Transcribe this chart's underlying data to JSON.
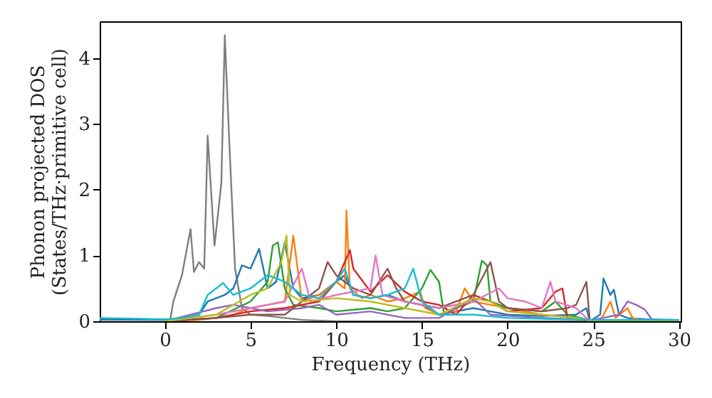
{
  "chart_data": {
    "type": "line",
    "xlabel": "Frequency (THz)",
    "ylabel": "Phonon projected DOS\n(States/THz·primitive cell)",
    "xlim": [
      -3.8,
      30.1
    ],
    "ylim": [
      0,
      4.56
    ],
    "xticks": [
      0,
      5,
      10,
      15,
      20,
      25,
      30
    ],
    "yticks": [
      0,
      1,
      2,
      3,
      4
    ],
    "grid": false,
    "marker": "none",
    "line_style": "solid",
    "series": [
      {
        "color": "#7f7f7f",
        "x": [
          -3.8,
          0,
          0.3,
          0.5,
          1,
          1.5,
          1.7,
          2,
          2.3,
          2.5,
          2.9,
          3.3,
          3.5,
          3.8,
          4.1,
          4.5,
          5,
          6,
          8,
          10,
          30
        ],
        "values": [
          0.02,
          0.02,
          0,
          0.3,
          0.7,
          1.4,
          0.75,
          0.9,
          0.8,
          2.82,
          1.15,
          2.1,
          4.35,
          2.5,
          0.8,
          0.2,
          0.1,
          0.08,
          0.02,
          0,
          0
        ]
      },
      {
        "color": "#1f77b4",
        "x": [
          -3.8,
          0,
          1,
          2,
          2.5,
          3,
          3.5,
          4,
          4.5,
          5,
          5.5,
          6,
          6.5,
          7,
          7.5,
          8,
          9,
          10,
          10.5,
          11,
          12,
          13,
          14,
          15,
          16,
          17,
          18,
          19,
          20,
          22,
          24,
          24.6,
          24.8,
          25.4,
          25.6,
          26,
          26.2,
          26.5,
          27,
          28,
          30
        ],
        "values": [
          0.03,
          0.02,
          0.05,
          0.1,
          0.3,
          0.35,
          0.4,
          0.5,
          0.85,
          0.8,
          1.1,
          0.5,
          0.6,
          1.2,
          0.5,
          0.35,
          0.4,
          0.6,
          0.7,
          0.4,
          0.35,
          0.4,
          0.3,
          0.25,
          0.1,
          0.15,
          0.2,
          0.15,
          0.1,
          0.08,
          0.1,
          0.2,
          0,
          0.1,
          0.65,
          0.4,
          0.48,
          0.1,
          0.05,
          0.03,
          0.02
        ]
      },
      {
        "color": "#ff7f0e",
        "x": [
          0,
          2,
          3,
          4,
          5,
          6,
          7,
          7.5,
          8,
          9,
          10,
          10.5,
          10.6,
          10.8,
          11.5,
          12,
          13,
          14,
          14.9,
          15.2,
          16,
          17,
          17.5,
          18,
          19,
          20,
          22,
          24,
          25,
          25.5,
          26,
          26.3,
          27,
          27.3,
          28,
          30
        ],
        "values": [
          0,
          0.02,
          0.05,
          0.1,
          0.2,
          0.25,
          0.3,
          1.3,
          0.3,
          0.4,
          0.6,
          0.5,
          1.68,
          0.5,
          0.35,
          0.4,
          0.3,
          0.35,
          0.45,
          0.2,
          0.1,
          0.15,
          0.5,
          0.3,
          0.25,
          0.2,
          0.1,
          0.05,
          0,
          0.05,
          0.3,
          0.05,
          0.2,
          0.05,
          0,
          0
        ]
      },
      {
        "color": "#2ca02c",
        "x": [
          0,
          3,
          5,
          6,
          6.3,
          6.6,
          7,
          7.5,
          9,
          10,
          12,
          13,
          14,
          15,
          15.5,
          16,
          16.3,
          17,
          18,
          18.5,
          18.8,
          19,
          20,
          22,
          22.8,
          23.5,
          25,
          30
        ],
        "values": [
          0,
          0.05,
          0.3,
          0.6,
          1.15,
          1.2,
          0.5,
          0.25,
          0.2,
          0.15,
          0.2,
          0.15,
          0.2,
          0.5,
          0.78,
          0.6,
          0.1,
          0.2,
          0.3,
          0.92,
          0.85,
          0.3,
          0.2,
          0.15,
          0.3,
          0.1,
          0,
          0
        ]
      },
      {
        "color": "#d62728",
        "x": [
          0,
          3,
          5,
          7,
          9,
          10,
          10.8,
          11,
          12,
          13,
          14,
          15,
          16,
          17,
          18,
          19,
          20,
          22,
          22.8,
          23.2,
          23.5,
          25,
          30
        ],
        "values": [
          0,
          0.05,
          0.15,
          0.2,
          0.3,
          0.6,
          1.08,
          0.8,
          0.45,
          0.7,
          0.45,
          0.3,
          0.25,
          0.1,
          0.4,
          0.3,
          0.15,
          0.2,
          0.45,
          0.5,
          0.05,
          0,
          0
        ]
      },
      {
        "color": "#9467bd",
        "x": [
          0,
          3,
          4,
          5,
          6,
          8,
          9,
          10,
          12,
          14,
          16,
          18,
          19,
          22,
          25,
          26.5,
          27,
          27.5,
          28,
          28.5,
          30
        ],
        "values": [
          0,
          0.2,
          0.25,
          0.2,
          0.15,
          0.2,
          0.25,
          0.1,
          0.15,
          0.05,
          0.05,
          0.35,
          0.1,
          0.05,
          0.02,
          0.1,
          0.3,
          0.25,
          0.18,
          0,
          0
        ]
      },
      {
        "color": "#8c564b",
        "x": [
          0,
          3,
          5,
          7,
          9,
          9.5,
          10,
          11,
          12,
          13,
          13.5,
          14,
          16,
          18,
          19,
          19.5,
          20,
          22,
          23.5,
          24,
          24.6,
          24.8,
          30
        ],
        "values": [
          0,
          0.05,
          0.1,
          0.1,
          0.5,
          0.9,
          0.7,
          0.5,
          0.4,
          0.8,
          0.5,
          0.3,
          0.2,
          0.4,
          0.9,
          0.3,
          0.2,
          0.15,
          0.2,
          0.25,
          0.6,
          0,
          0
        ]
      },
      {
        "color": "#e377c2",
        "x": [
          0,
          3,
          5,
          7,
          8,
          8.5,
          10,
          12,
          12.3,
          12.7,
          14,
          16,
          18,
          19.5,
          20,
          21,
          22,
          22.5,
          22.8,
          24,
          24.8,
          30
        ],
        "values": [
          0,
          0.1,
          0.2,
          0.3,
          0.8,
          0.3,
          0.4,
          0.5,
          1.0,
          0.4,
          0.3,
          0.2,
          0.3,
          0.5,
          0.35,
          0.3,
          0.2,
          0.6,
          0.3,
          0.2,
          0,
          0
        ]
      },
      {
        "color": "#bcbd22",
        "x": [
          0,
          3,
          5,
          6,
          6.8,
          7.1,
          7.3,
          8,
          10,
          12,
          14,
          16,
          18,
          19,
          20,
          22,
          24,
          25,
          30
        ],
        "values": [
          0,
          0.1,
          0.4,
          0.5,
          0.9,
          1.3,
          0.4,
          0.3,
          0.35,
          0.3,
          0.2,
          0.1,
          0.35,
          0.3,
          0.15,
          0.1,
          0.05,
          0,
          0
        ]
      },
      {
        "color": "#17becf",
        "x": [
          -3.8,
          0,
          1,
          2,
          2.5,
          3.4,
          4,
          5,
          6,
          7,
          8,
          9,
          10,
          10.5,
          11,
          12,
          13,
          14,
          14.5,
          15,
          16,
          18,
          20,
          25,
          30
        ],
        "values": [
          0.05,
          0.03,
          0.05,
          0.1,
          0.4,
          0.58,
          0.4,
          0.5,
          0.7,
          0.6,
          0.4,
          0.35,
          0.6,
          0.8,
          0.4,
          0.35,
          0.4,
          0.5,
          0.8,
          0.3,
          0.1,
          0.1,
          0.05,
          0.02,
          0.02
        ]
      }
    ]
  }
}
